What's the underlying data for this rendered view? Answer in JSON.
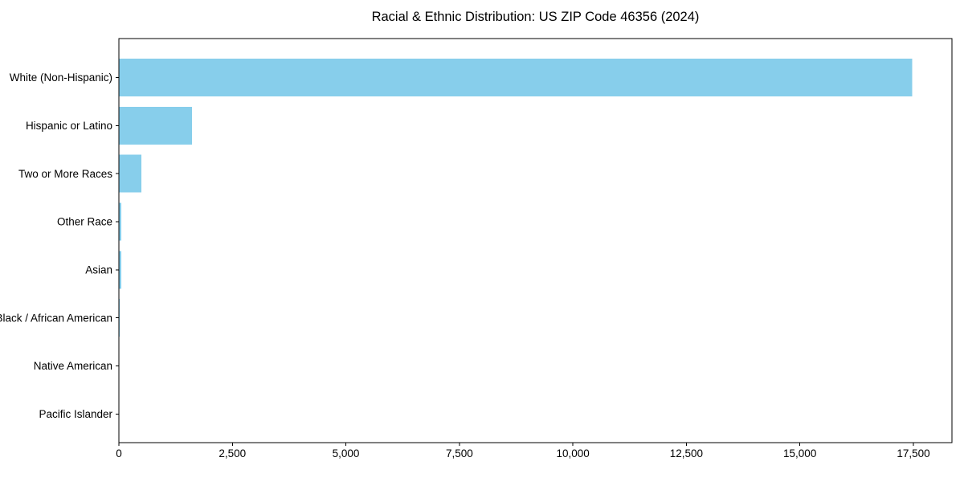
{
  "figure": {
    "background": "#ffffff"
  },
  "chart_data": {
    "type": "bar",
    "orientation": "horizontal",
    "title": "Racial & Ethnic Distribution: US ZIP Code 46356 (2024)",
    "xlabel": "",
    "ylabel": "",
    "categories": [
      "White (Non-Hispanic)",
      "Hispanic or Latino",
      "Two or More Races",
      "Other Race",
      "Asian",
      "Black / African American",
      "Native American",
      "Pacific Islander"
    ],
    "values": [
      17470,
      1610,
      495,
      55,
      50,
      15,
      10,
      3
    ],
    "xlim": [
      0,
      18350
    ],
    "xticks": [
      0,
      2500,
      5000,
      7500,
      10000,
      12500,
      15000,
      17500
    ],
    "xtick_labels": [
      "0",
      "2,500",
      "5,000",
      "7,500",
      "10,000",
      "12,500",
      "15,000",
      "17,500"
    ],
    "bar_color": "#87CEEB",
    "axis_color": "#000000",
    "text_color": "#000000",
    "grid": false,
    "legend": null
  }
}
